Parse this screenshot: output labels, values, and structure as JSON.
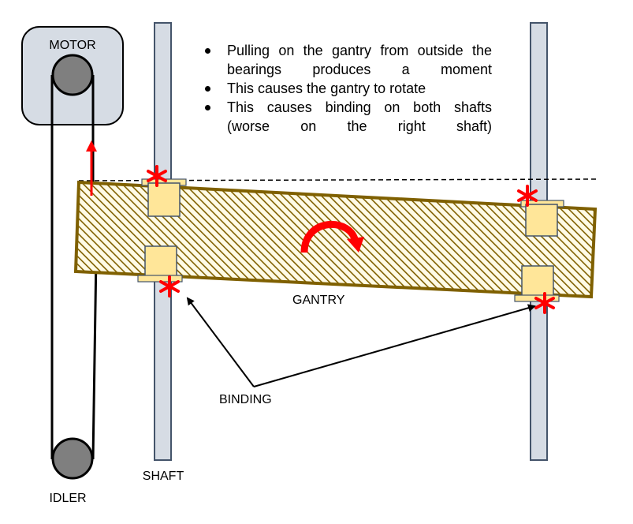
{
  "labels": {
    "motor": "MOTOR",
    "idler": "IDLER",
    "shaft": "SHAFT",
    "gantry": "GANTRY",
    "binding": "BINDING"
  },
  "notes": [
    "Pulling on the gantry from outside the bearings produces a moment",
    "This causes the gantry to rotate",
    "This causes binding on both shafts (worse on the right shaft)"
  ],
  "colors": {
    "shaft_fill": "#d6dce4",
    "shaft_stroke": "#44546a",
    "motor_box": "#d6dce4",
    "pulley": "#7f7f7f",
    "gantry_border": "#7f6000",
    "gantry_fill": "#fffbe6",
    "gantry_hatch": "#806000",
    "bearing": "#ffe699",
    "binding_mark": "#ff0000",
    "pull_arrow": "#ff0000"
  },
  "icons": [
    "binding-star-icon",
    "rotation-arrow-icon",
    "pull-arrow-icon"
  ]
}
